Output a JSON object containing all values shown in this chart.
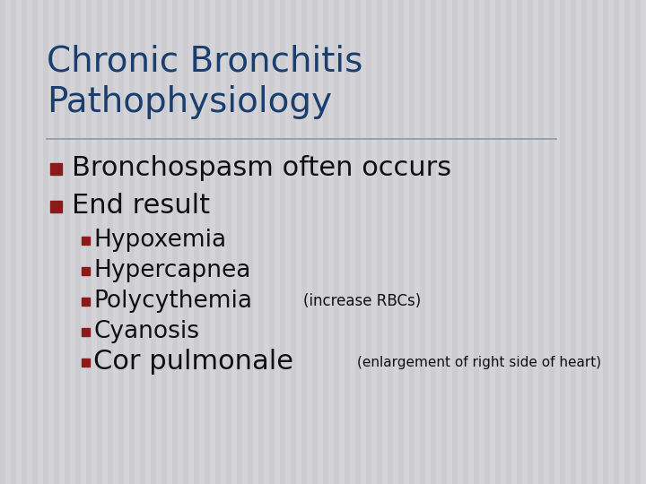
{
  "title_line1": "Chronic Bronchitis",
  "title_line2": "Pathophysiology",
  "title_color": "#1a3f6f",
  "background_color": "#d4d4d8",
  "stripe_color": "#c8c8cc",
  "divider_color": "#8899aa",
  "bullet_color": "#8b1a1a",
  "text_color": "#111111",
  "bullet1": "Bronchospasm often occurs",
  "bullet2": "End result",
  "sub_bullets": [
    {
      "main": "Hypoxemia",
      "note": "",
      "main_fs": 19
    },
    {
      "main": "Hypercapnea",
      "note": "",
      "main_fs": 19
    },
    {
      "main": "Polycythemia",
      "note": "(increase RBCs)",
      "main_fs": 19,
      "note_fs": 12
    },
    {
      "main": "Cyanosis",
      "note": "",
      "main_fs": 19
    },
    {
      "main": "Cor pulmonale",
      "note": "(enlargement of right side of heart)",
      "main_fs": 22,
      "note_fs": 11
    }
  ],
  "main_bullet_fontsize": 22,
  "title_fontsize": 28
}
